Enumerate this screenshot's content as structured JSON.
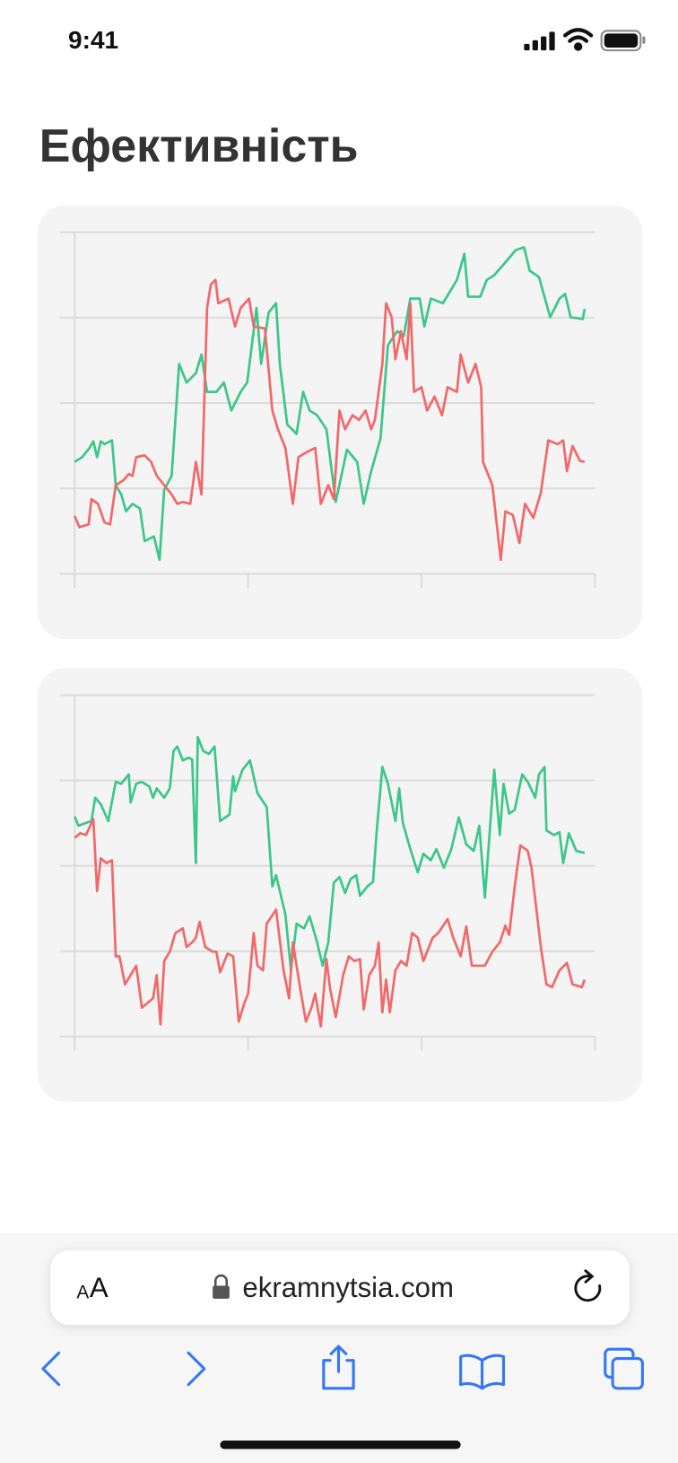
{
  "status_bar": {
    "time": "9:41"
  },
  "header": {
    "title": "Ефективність"
  },
  "browser": {
    "text_size": [
      "A",
      "A"
    ],
    "url": "ekramnytsia.com"
  },
  "chart_data": [
    {
      "type": "line",
      "grid": true,
      "xlim": [
        0,
        558
      ],
      "xticks": [
        0,
        186,
        372,
        558
      ],
      "ylim": [
        0,
        366
      ],
      "yticks": [
        0,
        91.5,
        183,
        274.5,
        366
      ],
      "series": [
        {
          "color": "#3cc68a",
          "x": [
            0,
            8,
            16,
            20,
            24,
            28,
            32,
            40,
            44,
            50,
            55,
            62,
            70,
            75,
            85,
            91,
            96,
            104,
            112,
            120,
            130,
            136,
            142,
            152,
            160,
            168,
            178,
            185,
            195,
            200,
            208,
            216,
            220,
            228,
            238,
            245,
            252,
            260,
            270,
            280,
            292,
            303,
            310,
            318,
            328,
            336,
            346,
            353,
            360,
            370,
            375,
            382,
            395,
            410,
            418,
            422,
            435,
            442,
            450,
            463,
            473,
            482,
            488,
            498,
            510,
            520,
            526,
            532,
            545,
            547
          ],
          "values": [
            120,
            125,
            135,
            142,
            125,
            142,
            139,
            143,
            95,
            85,
            67,
            75,
            70,
            35,
            40,
            15,
            90,
            105,
            225,
            205,
            215,
            235,
            195,
            195,
            205,
            175,
            195,
            205,
            285,
            225,
            280,
            290,
            225,
            160,
            150,
            195,
            175,
            170,
            155,
            77,
            133,
            120,
            75,
            110,
            145,
            245,
            260,
            255,
            295,
            295,
            265,
            295,
            290,
            315,
            343,
            297,
            297,
            315,
            320,
            335,
            347,
            350,
            325,
            318,
            275,
            295,
            300,
            275,
            273,
            284
          ]
        },
        {
          "color": "#f2686a",
          "x": [
            0,
            5,
            15,
            18,
            25,
            32,
            38,
            44,
            52,
            58,
            62,
            66,
            75,
            82,
            88,
            96,
            104,
            110,
            116,
            124,
            130,
            136,
            142,
            146,
            151,
            154,
            165,
            172,
            178,
            187,
            192,
            204,
            212,
            218,
            226,
            234,
            240,
            248,
            258,
            264,
            272,
            278,
            284,
            290,
            298,
            305,
            312,
            318,
            322,
            330,
            334,
            340,
            344,
            350,
            356,
            360,
            364,
            372,
            378,
            386,
            394,
            400,
            410,
            414,
            422,
            430,
            436,
            438,
            448,
            457,
            462,
            470,
            477,
            483,
            492,
            500,
            508,
            518,
            524,
            528,
            534,
            542,
            547
          ],
          "values": [
            62,
            50,
            53,
            80,
            75,
            55,
            53,
            95,
            100,
            107,
            105,
            125,
            127,
            120,
            105,
            95,
            85,
            75,
            77,
            75,
            120,
            85,
            285,
            310,
            315,
            290,
            295,
            265,
            285,
            295,
            265,
            263,
            175,
            155,
            135,
            75,
            125,
            130,
            135,
            75,
            95,
            80,
            175,
            155,
            170,
            165,
            175,
            155,
            165,
            225,
            290,
            275,
            230,
            260,
            230,
            290,
            195,
            200,
            175,
            190,
            170,
            200,
            195,
            235,
            205,
            225,
            200,
            120,
            95,
            15,
            67,
            63,
            33,
            75,
            60,
            87,
            143,
            139,
            143,
            110,
            137,
            121,
            120
          ]
        }
      ]
    },
    {
      "type": "line",
      "grid": true,
      "xlim": [
        0,
        558
      ],
      "xticks": [
        0,
        186,
        372,
        558
      ],
      "ylim": [
        0,
        366
      ],
      "yticks": [
        0,
        91.5,
        183,
        274.5,
        366
      ],
      "series": [
        {
          "color": "#3cc68a",
          "x": [
            0,
            4,
            12,
            18,
            22,
            28,
            36,
            44,
            50,
            58,
            60,
            66,
            72,
            80,
            84,
            88,
            96,
            102,
            106,
            110,
            116,
            122,
            126,
            130,
            132,
            138,
            144,
            150,
            156,
            166,
            170,
            172,
            180,
            188,
            196,
            206,
            212,
            216,
            226,
            232,
            238,
            246,
            252,
            260,
            266,
            272,
            278,
            284,
            290,
            296,
            302,
            306,
            314,
            320,
            324,
            330,
            336,
            344,
            348,
            352,
            360,
            368,
            374,
            382,
            388,
            396,
            404,
            412,
            420,
            428,
            434,
            440,
            446,
            450,
            456,
            460,
            466,
            472,
            480,
            486,
            494,
            498,
            504,
            506,
            514,
            520,
            524,
            530,
            538,
            547
          ],
          "values": [
            236,
            226,
            229,
            231,
            256,
            249,
            231,
            273,
            271,
            281,
            251,
            271,
            273,
            268,
            256,
            266,
            256,
            266,
            306,
            311,
            296,
            299,
            297,
            186,
            321,
            306,
            303,
            311,
            231,
            238,
            279,
            263,
            286,
            296,
            261,
            246,
            161,
            173,
            131,
            71,
            121,
            116,
            129,
            101,
            76,
            101,
            165,
            171,
            154,
            169,
            173,
            151,
            161,
            166,
            221,
            289,
            271,
            231,
            266,
            229,
            201,
            176,
            196,
            189,
            201,
            181,
            201,
            235,
            206,
            199,
            226,
            149,
            231,
            286,
            216,
            271,
            239,
            243,
            281,
            273,
            256,
            281,
            289,
            221,
            216,
            219,
            186,
            218,
            199,
            197
          ]
        },
        {
          "color": "#f2686a",
          "x": [
            0,
            6,
            12,
            20,
            24,
            28,
            34,
            40,
            44,
            48,
            54,
            60,
            66,
            72,
            78,
            84,
            88,
            92,
            96,
            102,
            108,
            116,
            120,
            126,
            130,
            134,
            140,
            148,
            152,
            156,
            164,
            170,
            176,
            182,
            186,
            192,
            196,
            202,
            206,
            216,
            224,
            230,
            234,
            242,
            248,
            254,
            258,
            264,
            270,
            274,
            280,
            288,
            294,
            300,
            306,
            310,
            316,
            322,
            326,
            330,
            334,
            338,
            344,
            350,
            356,
            362,
            368,
            374,
            380,
            384,
            390,
            400,
            406,
            414,
            420,
            426,
            434,
            440,
            448,
            456,
            462,
            466,
            472,
            478,
            486,
            490,
            500,
            506,
            512,
            520,
            528,
            534,
            544,
            547
          ],
          "values": [
            213,
            218,
            216,
            233,
            156,
            191,
            186,
            189,
            86,
            86,
            56,
            66,
            76,
            31,
            36,
            41,
            66,
            13,
            81,
            91,
            111,
            116,
            96,
            101,
            106,
            123,
            96,
            91,
            91,
            69,
            89,
            86,
            16,
            36,
            46,
            111,
            76,
            71,
            121,
            136,
            71,
            41,
            101,
            51,
            16,
            31,
            46,
            11,
            83,
            51,
            21,
            66,
            86,
            81,
            83,
            29,
            66,
            76,
            101,
            26,
            61,
            26,
            71,
            81,
            76,
            111,
            106,
            81,
            96,
            106,
            111,
            126,
            106,
            86,
            118,
            76,
            76,
            76,
            91,
            101,
            119,
            109,
            161,
            205,
            199,
            181,
            96,
            56,
            53,
            71,
            79,
            56,
            53,
            61
          ]
        }
      ]
    }
  ]
}
